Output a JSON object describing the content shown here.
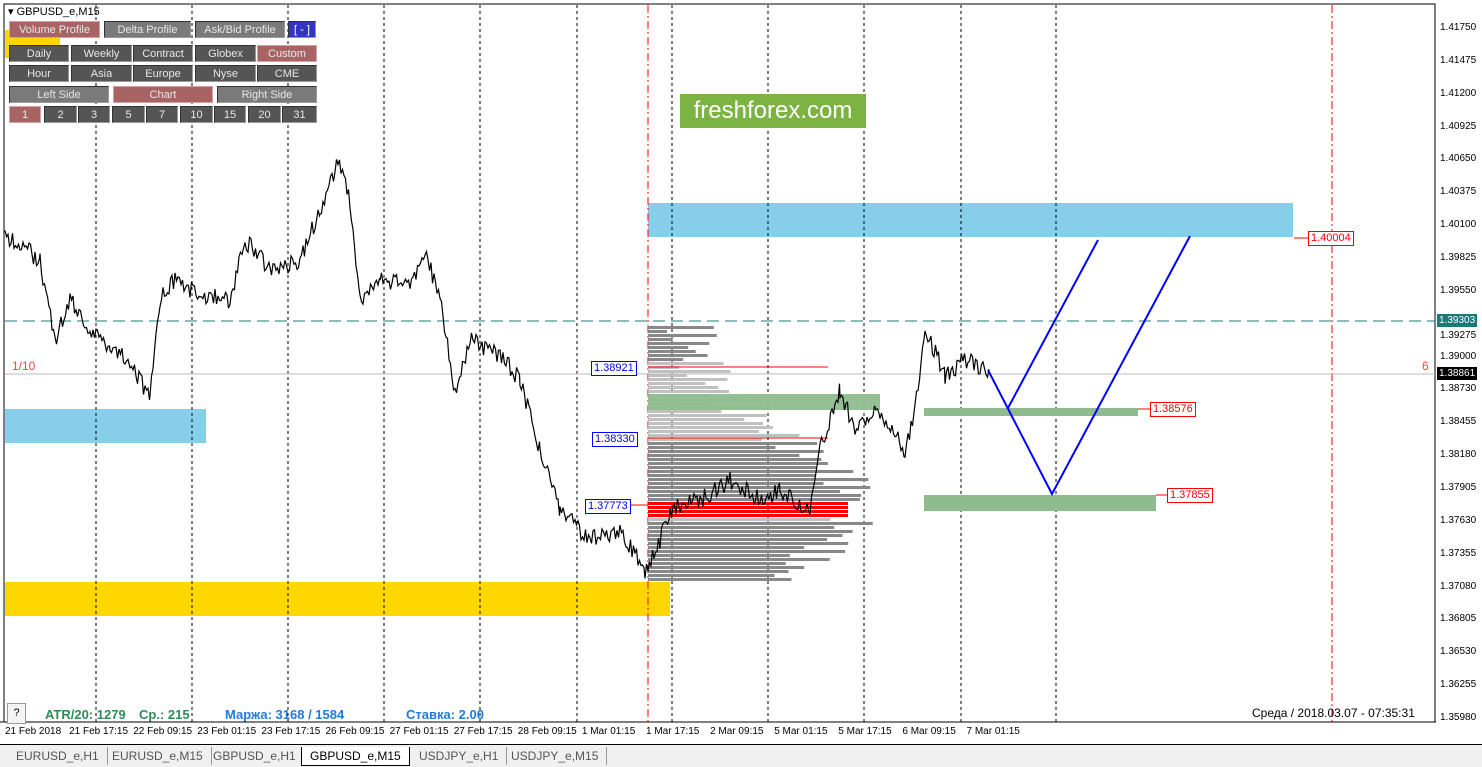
{
  "symbol": "GBPUSD_e,M15",
  "buttons": {
    "row1": [
      {
        "label": "Volume Profile",
        "state": "on"
      },
      {
        "label": "Delta Profile",
        "state": "l"
      },
      {
        "label": "Ask/Bid Profile",
        "state": "l"
      },
      {
        "label": "[ - ]",
        "state": "blue"
      }
    ],
    "row2": [
      {
        "label": "Daily"
      },
      {
        "label": "Weekly"
      },
      {
        "label": "Contract"
      },
      {
        "label": "Globex"
      },
      {
        "label": "Custom",
        "state": "on"
      }
    ],
    "row3": [
      {
        "label": "Hour"
      },
      {
        "label": "Asia"
      },
      {
        "label": "Europe"
      },
      {
        "label": "Nyse"
      },
      {
        "label": "CME"
      }
    ],
    "row4": [
      {
        "label": "Left Side",
        "state": "l"
      },
      {
        "label": "Chart",
        "state": "on"
      },
      {
        "label": "Right Side",
        "state": "l"
      }
    ],
    "row5": [
      {
        "label": "1",
        "state": "on"
      },
      {
        "label": "2"
      },
      {
        "label": "3"
      },
      {
        "label": "5"
      },
      {
        "label": "7"
      },
      {
        "label": "10"
      },
      {
        "label": "15"
      },
      {
        "label": "20"
      },
      {
        "label": "31"
      }
    ]
  },
  "logo": "freshforex.com",
  "price_axis": [
    "1.41750",
    "1.41475",
    "1.41200",
    "1.40925",
    "1.40650",
    "1.40375",
    "1.40100",
    "1.39825",
    "1.39550",
    "1.39275",
    "1.39000",
    "1.38730",
    "1.38455",
    "1.38180",
    "1.37905",
    "1.37630",
    "1.37355",
    "1.37080",
    "1.36805",
    "1.36530",
    "1.36255",
    "1.35980"
  ],
  "ask_price": "1.39303",
  "bid_price": "1.38861",
  "time_axis": [
    "21 Feb 2018",
    "21 Feb 17:15",
    "22 Feb 09:15",
    "23 Feb 01:15",
    "23 Feb 17:15",
    "26 Feb 09:15",
    "27 Feb 01:15",
    "27 Feb 17:15",
    "28 Feb 09:15",
    "1 Mar 01:15",
    "1 Mar 17:15",
    "2 Mar 09:15",
    "5 Mar 01:15",
    "5 Mar 17:15",
    "6 Mar 09:15",
    "7 Mar 01:15"
  ],
  "profile_levels": [
    "1.38921",
    "1.38330",
    "1.37773"
  ],
  "target_levels": [
    "1.40004",
    "1.38576",
    "1.37855"
  ],
  "left_marker": "1/10",
  "right_marker": "6",
  "status": {
    "help": "?",
    "atr": "ATR/20: 1279",
    "avg": "Ср.: 215",
    "margin": "Маржа: 3168 / 1584",
    "rate": "Ставка: 2.00",
    "datetime": "Среда  /  2018.03.07  -  07:35:31"
  },
  "tabs": [
    "EURUSD_e,H1",
    "EURUSD_e,M15",
    "GBPUSD_e,H1",
    "GBPUSD_e,M15",
    "USDJPY_e,H1",
    "USDJPY_e,M15"
  ],
  "active_tab": "GBPUSD_e,M15",
  "colors": {
    "blue_zone": "#87ceeb",
    "yellow_zone": "#ffd700",
    "green_zone": "#8fbc8f",
    "forecast": "#0000ff",
    "logo_bg": "#7cb342"
  }
}
